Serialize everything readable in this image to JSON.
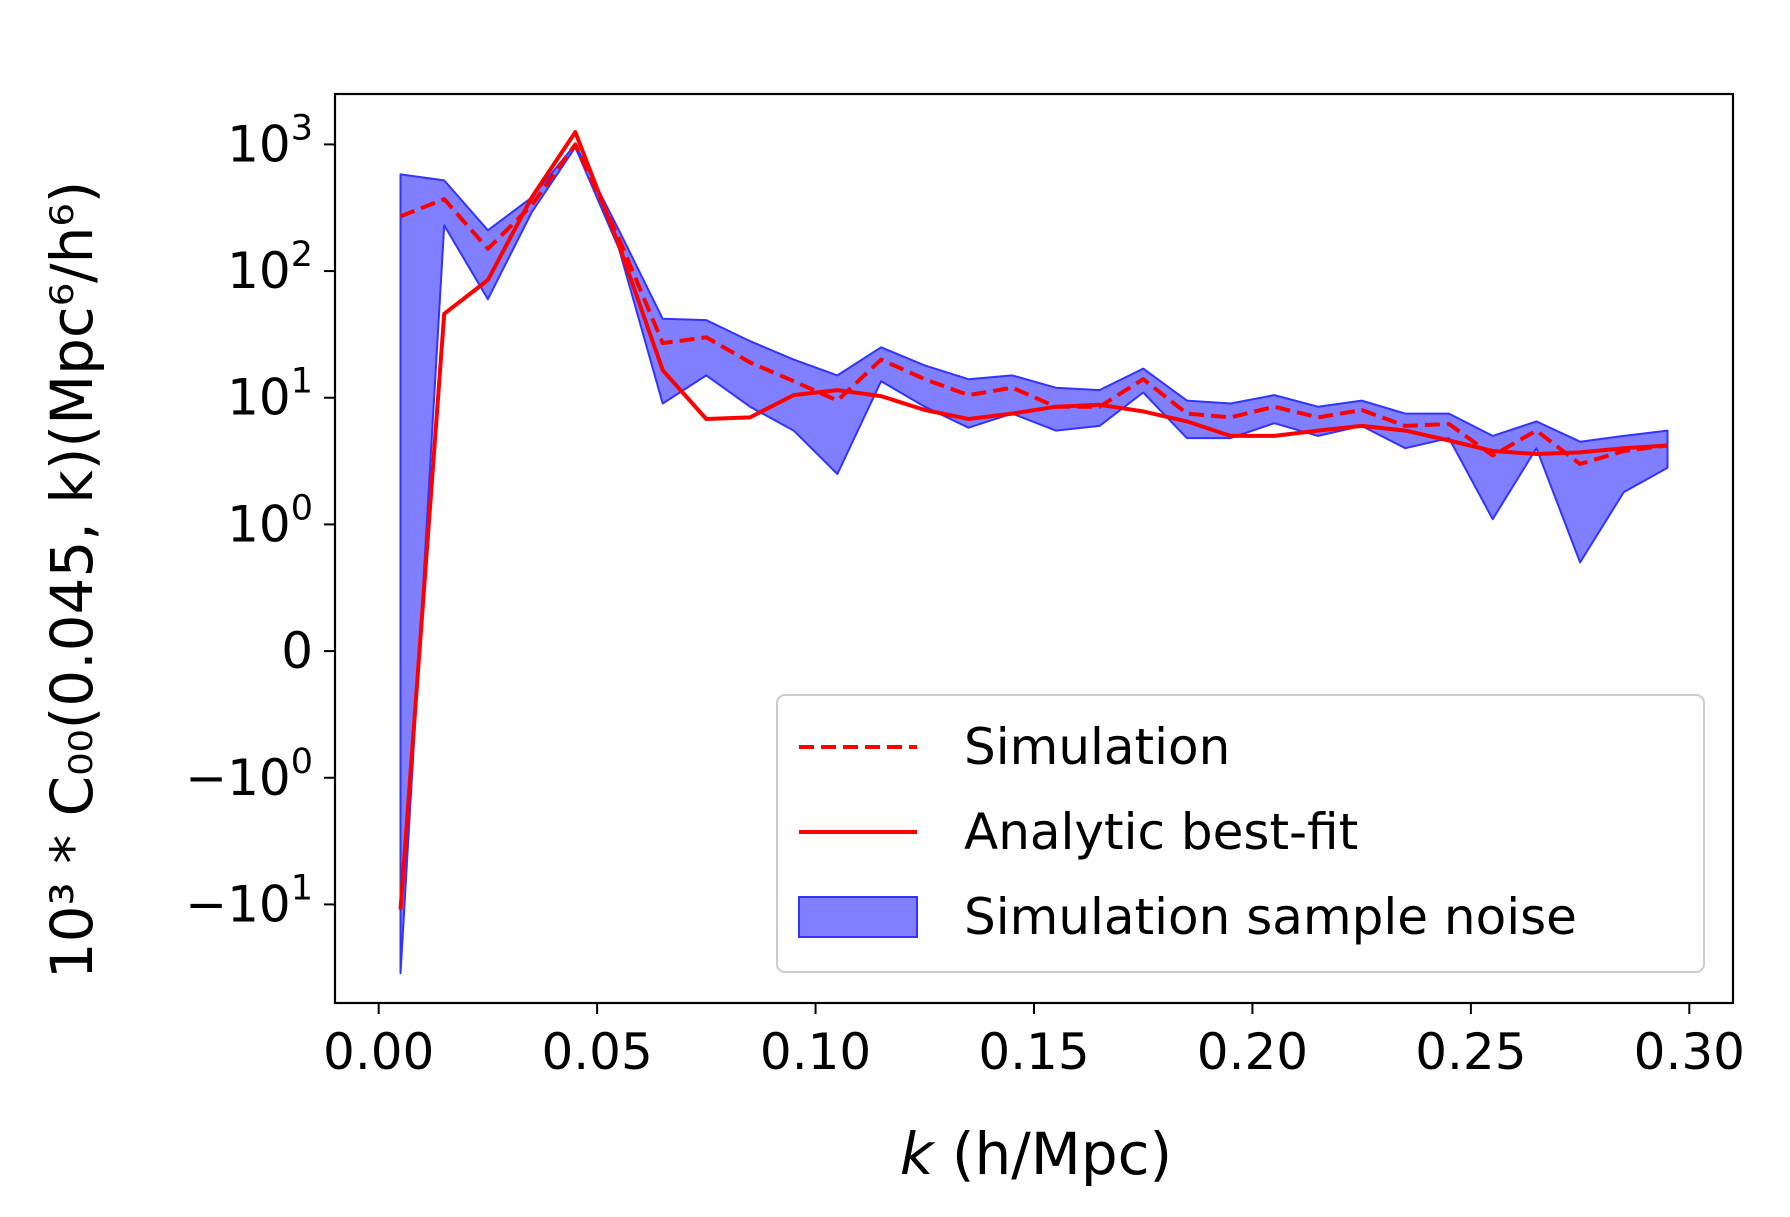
{
  "chart_data": {
    "type": "line",
    "y_scale": "symlog",
    "y_linthresh": 1,
    "xlabel_italic": "k",
    "xlabel_rest": " (h/Mpc)",
    "ylabel": "10³ * C₀₀(0.045, k)(Mpc⁶/h⁶)",
    "xlim": [
      -0.01,
      0.31
    ],
    "ylim": [
      -60,
      2500
    ],
    "x_ticks": [
      {
        "value": 0.0,
        "label": "0.00"
      },
      {
        "value": 0.05,
        "label": "0.05"
      },
      {
        "value": 0.1,
        "label": "0.10"
      },
      {
        "value": 0.15,
        "label": "0.15"
      },
      {
        "value": 0.2,
        "label": "0.20"
      },
      {
        "value": 0.25,
        "label": "0.25"
      },
      {
        "value": 0.3,
        "label": "0.30"
      }
    ],
    "y_ticks": [
      {
        "value": -10,
        "base": "−10",
        "exp": "1"
      },
      {
        "value": -1,
        "base": "−10",
        "exp": "0"
      },
      {
        "value": 0,
        "base": "0",
        "exp": ""
      },
      {
        "value": 1,
        "base": "10",
        "exp": "0"
      },
      {
        "value": 10,
        "base": "10",
        "exp": "1"
      },
      {
        "value": 100,
        "base": "10",
        "exp": "2"
      },
      {
        "value": 1000,
        "base": "10",
        "exp": "3"
      }
    ],
    "x": [
      0.005,
      0.015,
      0.025,
      0.035,
      0.045,
      0.055,
      0.065,
      0.075,
      0.085,
      0.095,
      0.105,
      0.115,
      0.125,
      0.135,
      0.145,
      0.155,
      0.165,
      0.175,
      0.185,
      0.195,
      0.205,
      0.215,
      0.225,
      0.235,
      0.245,
      0.255,
      0.265,
      0.275,
      0.285,
      0.295
    ],
    "series": [
      {
        "name": "Simulation",
        "style": "dashed",
        "color": "#ff0000",
        "values": [
          270,
          370,
          150,
          330,
          1000,
          180,
          27,
          30,
          19,
          13.5,
          9.5,
          20,
          14,
          10.5,
          12,
          8.5,
          8.5,
          14,
          7.5,
          7,
          8.5,
          7,
          8,
          6,
          6.2,
          3.5,
          5.5,
          3,
          3.8,
          4.2
        ]
      },
      {
        "name": "Analytic best-fit",
        "style": "solid",
        "color": "#ff0000",
        "values": [
          -11,
          46,
          85,
          380,
          1250,
          160,
          16.5,
          6.8,
          7,
          10.5,
          11.5,
          10.3,
          8,
          6.8,
          7.5,
          8.5,
          8.8,
          7.8,
          6.5,
          5,
          5,
          5.5,
          6,
          5.5,
          4.6,
          3.8,
          3.6,
          3.7,
          4,
          4.2
        ]
      }
    ],
    "band": {
      "name": "Simulation sample noise",
      "color": "#0000ff",
      "edge_color": "#3333ff",
      "upper": [
        580,
        520,
        210,
        380,
        1000,
        210,
        42,
        41,
        28,
        20,
        15,
        25,
        18,
        14,
        15,
        12,
        11.5,
        17,
        9.5,
        9,
        10.5,
        8.5,
        9.5,
        7.5,
        7.5,
        5,
        6.5,
        4.5,
        5,
        5.5
      ],
      "lower": [
        -35,
        230,
        60,
        290,
        950,
        150,
        9,
        15,
        8.5,
        5.5,
        2.5,
        13.5,
        8.5,
        5.8,
        7.5,
        5.5,
        6,
        11,
        4.8,
        4.8,
        6.3,
        5,
        6,
        4,
        4.8,
        1.1,
        4,
        0.7,
        1.8,
        2.8
      ]
    },
    "legend": {
      "position": "lower-right",
      "entries": [
        "Simulation",
        "Analytic best-fit",
        "Simulation sample noise"
      ]
    }
  }
}
